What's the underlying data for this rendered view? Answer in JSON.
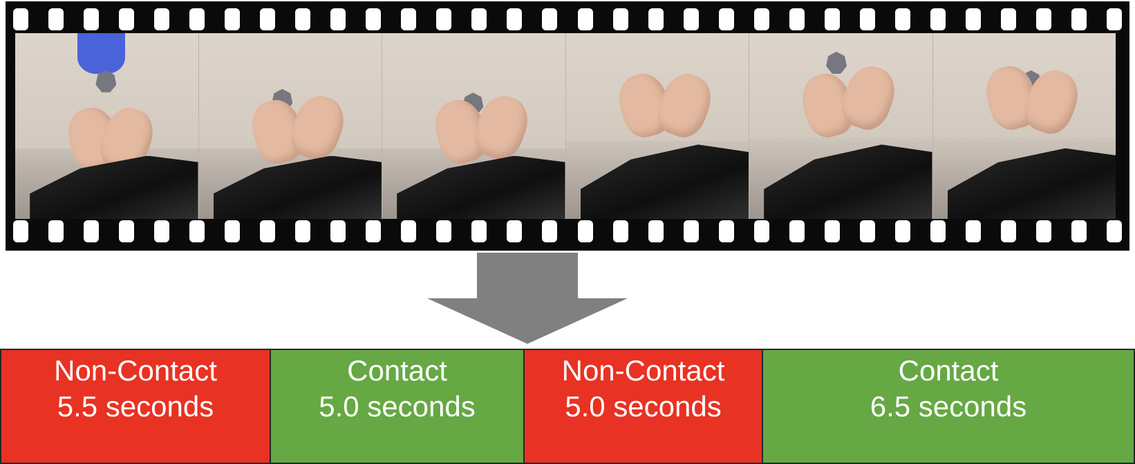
{
  "segments": [
    {
      "label": "Non-Contact",
      "duration": "5.5 seconds",
      "color": "#e83223"
    },
    {
      "label": "Contact",
      "duration": "5.0 seconds",
      "color": "#66a844"
    },
    {
      "label": "Non-Contact",
      "duration": "5.0 seconds",
      "color": "#e83223"
    },
    {
      "label": "Contact",
      "duration": "6.5 seconds",
      "color": "#66a844"
    }
  ],
  "colors": {
    "non_contact": "#e83223",
    "contact": "#66a844",
    "arrow": "#808080",
    "film": "#0a0a0a"
  }
}
